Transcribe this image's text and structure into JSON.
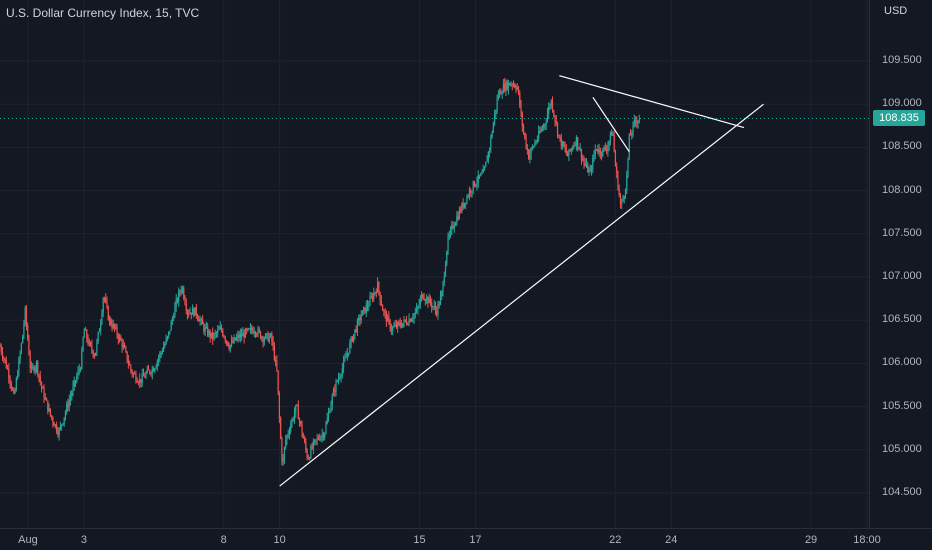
{
  "header": {
    "title": "U.S. Dollar Currency Index, 15, TVC",
    "currency": "USD"
  },
  "price_axis": {
    "ticks": [
      "109.500",
      "109.000",
      "108.500",
      "108.000",
      "107.500",
      "107.000",
      "106.500",
      "106.000",
      "105.500",
      "105.000",
      "104.500"
    ],
    "current_price": "108.835"
  },
  "time_axis": {
    "ticks": [
      "Aug",
      "3",
      "8",
      "10",
      "15",
      "17",
      "22",
      "24",
      "29",
      "18:00"
    ]
  },
  "colors": {
    "up": "#26a69a",
    "down": "#ef5350",
    "drawing": "#ffffff",
    "price_line": "#26a69a"
  },
  "chart_data": {
    "type": "candlestick",
    "title": "U.S. Dollar Currency Index, 15, TVC",
    "ylabel": "USD",
    "ylim": [
      104.2,
      110.1
    ],
    "grid": true,
    "x_ticks": [
      {
        "label": "Aug",
        "x": 1
      },
      {
        "label": "3",
        "x": 3
      },
      {
        "label": "8",
        "x": 8
      },
      {
        "label": "10",
        "x": 10
      },
      {
        "label": "15",
        "x": 15
      },
      {
        "label": "17",
        "x": 17
      },
      {
        "label": "22",
        "x": 22
      },
      {
        "label": "24",
        "x": 24
      },
      {
        "label": "29",
        "x": 29
      },
      {
        "label": "18:00",
        "x": 31
      }
    ],
    "path": [
      [
        0.0,
        106.2
      ],
      [
        0.3,
        105.9
      ],
      [
        0.5,
        105.6
      ],
      [
        0.8,
        106.3
      ],
      [
        0.9,
        106.6
      ],
      [
        1.1,
        105.9
      ],
      [
        1.3,
        106.0
      ],
      [
        1.5,
        105.7
      ],
      [
        1.8,
        105.4
      ],
      [
        2.1,
        105.2
      ],
      [
        2.3,
        105.4
      ],
      [
        2.6,
        105.7
      ],
      [
        2.9,
        106.0
      ],
      [
        3.0,
        106.4
      ],
      [
        3.2,
        106.2
      ],
      [
        3.4,
        106.1
      ],
      [
        3.6,
        106.5
      ],
      [
        3.7,
        106.8
      ],
      [
        3.9,
        106.5
      ],
      [
        4.1,
        106.4
      ],
      [
        4.4,
        106.2
      ],
      [
        4.7,
        105.9
      ],
      [
        5.0,
        105.8
      ],
      [
        5.3,
        105.9
      ],
      [
        5.5,
        105.95
      ],
      [
        6.0,
        106.3
      ],
      [
        6.3,
        106.7
      ],
      [
        6.5,
        106.9
      ],
      [
        6.7,
        106.6
      ],
      [
        7.0,
        106.6
      ],
      [
        7.3,
        106.4
      ],
      [
        7.6,
        106.3
      ],
      [
        7.9,
        106.4
      ],
      [
        8.2,
        106.2
      ],
      [
        8.5,
        106.3
      ],
      [
        8.8,
        106.35
      ],
      [
        9.1,
        106.4
      ],
      [
        9.4,
        106.3
      ],
      [
        9.7,
        106.3
      ],
      [
        9.9,
        105.9
      ],
      [
        10.0,
        105.3
      ],
      [
        10.1,
        104.8
      ],
      [
        10.2,
        105.1
      ],
      [
        10.4,
        105.3
      ],
      [
        10.6,
        105.5
      ],
      [
        10.8,
        105.2
      ],
      [
        11.0,
        104.9
      ],
      [
        11.2,
        105.05
      ],
      [
        11.4,
        105.15
      ],
      [
        11.6,
        105.2
      ],
      [
        11.8,
        105.5
      ],
      [
        12.0,
        105.75
      ],
      [
        12.3,
        106.0
      ],
      [
        12.6,
        106.3
      ],
      [
        12.9,
        106.55
      ],
      [
        13.2,
        106.7
      ],
      [
        13.5,
        106.9
      ],
      [
        13.7,
        106.6
      ],
      [
        14.0,
        106.4
      ],
      [
        14.3,
        106.45
      ],
      [
        14.6,
        106.5
      ],
      [
        14.9,
        106.6
      ],
      [
        15.1,
        106.8
      ],
      [
        15.4,
        106.7
      ],
      [
        15.6,
        106.6
      ],
      [
        15.8,
        106.8
      ],
      [
        16.0,
        107.4
      ],
      [
        16.2,
        107.6
      ],
      [
        16.5,
        107.8
      ],
      [
        16.8,
        108.0
      ],
      [
        17.0,
        108.1
      ],
      [
        17.3,
        108.2
      ],
      [
        17.5,
        108.5
      ],
      [
        17.8,
        109.1
      ],
      [
        18.0,
        109.2
      ],
      [
        18.3,
        109.25
      ],
      [
        18.5,
        109.2
      ],
      [
        18.7,
        108.7
      ],
      [
        18.9,
        108.4
      ],
      [
        19.2,
        108.6
      ],
      [
        19.5,
        108.8
      ],
      [
        19.7,
        109.05
      ],
      [
        20.0,
        108.6
      ],
      [
        20.3,
        108.4
      ],
      [
        20.6,
        108.6
      ],
      [
        20.9,
        108.3
      ],
      [
        21.1,
        108.2
      ],
      [
        21.3,
        108.5
      ],
      [
        21.5,
        108.45
      ],
      [
        21.7,
        108.5
      ],
      [
        21.9,
        108.7
      ],
      [
        22.0,
        108.3
      ],
      [
        22.2,
        107.8
      ],
      [
        22.4,
        108.1
      ],
      [
        22.5,
        108.6
      ],
      [
        22.7,
        108.8
      ],
      [
        22.9,
        108.85
      ]
    ],
    "drawings": [
      {
        "type": "trendline",
        "from": [
          10.0,
          104.58
        ],
        "to": [
          27.3,
          109.0
        ]
      },
      {
        "type": "trendline",
        "from": [
          20.0,
          109.33
        ],
        "to": [
          26.6,
          108.73
        ]
      },
      {
        "type": "trendline",
        "from": [
          21.2,
          109.08
        ],
        "to": [
          22.5,
          108.45
        ]
      }
    ],
    "current_price": 108.835
  }
}
